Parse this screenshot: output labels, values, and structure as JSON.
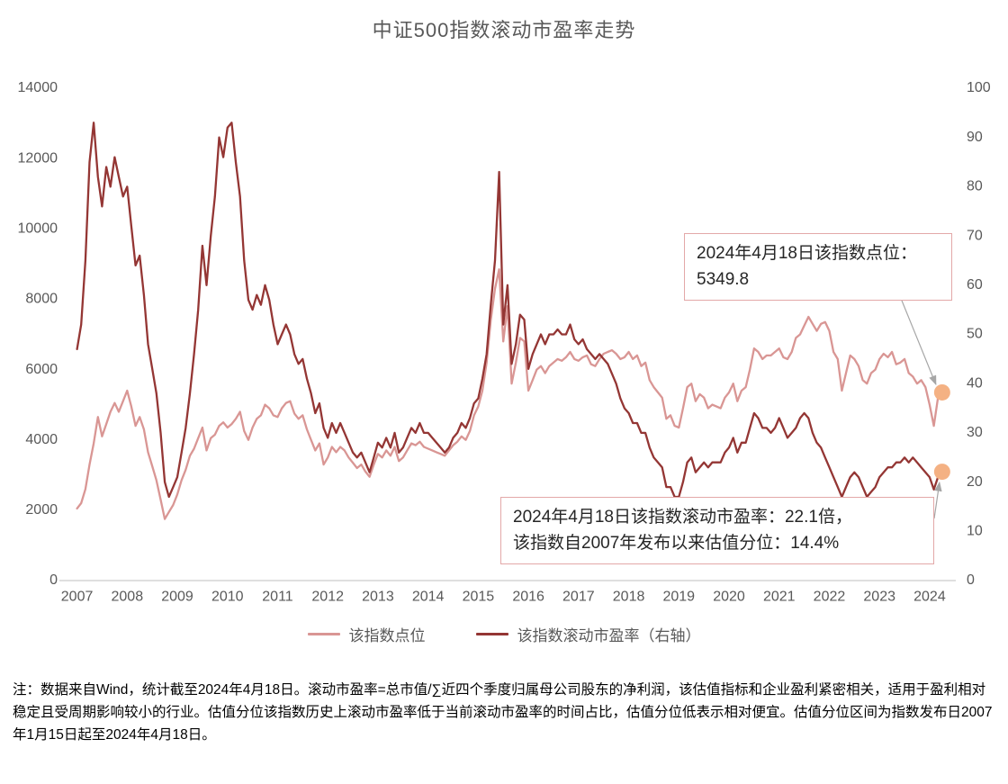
{
  "title": "中证500指数滚动市盈率走势",
  "legend": [
    {
      "label": "该指数点位"
    },
    {
      "label": "该指数滚动市盈率（右轴）"
    }
  ],
  "annotation_index": {
    "line1": "2024年4月18日该指数点位：",
    "line2": "5349.8"
  },
  "annotation_pe": {
    "line1": "2024年4月18日该指数滚动市盈率：22.1倍，",
    "line2": "该指数自2007年发布以来估值分位：14.4%"
  },
  "footnote": "注：数据来自Wind，统计截至2024年4月18日。滚动市盈率=总市值/∑近四个季度归属母公司股东的净利润，该估值指标和企业盈利紧密相关，适用于盈利相对稳定且受周期影响较小的行业。估值分位该指数历史上滚动市盈率低于当前滚动市盈率的时间占比，估值分位低表示相对便宜。估值分位区间为指数发布日2007年1月15日起至2024年4月18日。",
  "colors": {
    "index_line": "#D99694",
    "pe_line": "#943634",
    "marker": "#F4B183",
    "axis_text": "#595959",
    "axis_line": "#BFBFBF",
    "note_border": "#E3A8A8",
    "leader": "#A6A6A6"
  },
  "chart_data": {
    "type": "line",
    "title": "中证500指数滚动市盈率走势",
    "grid": false,
    "legend_position": "bottom",
    "x_label": "",
    "x_start": 2007.0,
    "x_step_years": 0.0833333,
    "x_ticks": [
      2007,
      2008,
      2009,
      2010,
      2011,
      2012,
      2013,
      2014,
      2015,
      2016,
      2017,
      2018,
      2019,
      2020,
      2021,
      2022,
      2023,
      2024
    ],
    "left_axis": {
      "label": "指数点位",
      "min": 0,
      "max": 14000,
      "tick_step": 2000
    },
    "right_axis": {
      "label": "滚动市盈率",
      "min": 0,
      "max": 100,
      "tick_step": 10
    },
    "series": [
      {
        "name": "该指数点位",
        "axis": "left",
        "color": "#D99694",
        "values": [
          2050,
          2200,
          2600,
          3300,
          3900,
          4650,
          4100,
          4450,
          4800,
          5050,
          4800,
          5100,
          5400,
          4950,
          4400,
          4650,
          4300,
          3650,
          3250,
          2850,
          2300,
          1750,
          1950,
          2150,
          2450,
          2850,
          3150,
          3550,
          3750,
          4050,
          4350,
          3700,
          4050,
          4150,
          4400,
          4500,
          4350,
          4450,
          4600,
          4800,
          4250,
          4000,
          4350,
          4600,
          4700,
          5000,
          4900,
          4700,
          4650,
          4900,
          5050,
          5100,
          4750,
          4600,
          4700,
          4300,
          4000,
          3700,
          3900,
          3300,
          3500,
          3800,
          3650,
          3800,
          3700,
          3500,
          3350,
          3200,
          3300,
          3100,
          2950,
          3300,
          3600,
          3500,
          3700,
          3550,
          3800,
          3400,
          3500,
          3700,
          3900,
          3850,
          3950,
          3800,
          3750,
          3700,
          3650,
          3600,
          3550,
          3700,
          3850,
          3950,
          4100,
          4000,
          4250,
          4700,
          4950,
          5400,
          6200,
          7400,
          8300,
          8850,
          6800,
          7800,
          5600,
          6200,
          6900,
          6800,
          5400,
          5700,
          6000,
          6100,
          5900,
          6100,
          6200,
          6300,
          6250,
          6350,
          6500,
          6300,
          6250,
          6350,
          6400,
          6150,
          6100,
          6300,
          6450,
          6500,
          6550,
          6450,
          6300,
          6350,
          6500,
          6300,
          6400,
          6100,
          6200,
          5700,
          5500,
          5350,
          5200,
          4600,
          4700,
          4400,
          4350,
          4900,
          5500,
          5600,
          5100,
          5300,
          5200,
          4900,
          5000,
          4950,
          4900,
          5200,
          5350,
          5600,
          5100,
          5400,
          5500,
          6000,
          6600,
          6500,
          6300,
          6400,
          6400,
          6500,
          6600,
          6350,
          6300,
          6500,
          6900,
          7000,
          7250,
          7500,
          7300,
          7100,
          7300,
          7350,
          7100,
          6500,
          6300,
          5400,
          5900,
          6400,
          6300,
          6100,
          5700,
          5600,
          5900,
          6000,
          6300,
          6450,
          6350,
          6500,
          6150,
          6200,
          6300,
          5900,
          5800,
          5600,
          5700,
          5500,
          5000,
          4400,
          5200,
          5349.8
        ]
      },
      {
        "name": "该指数滚动市盈率（右轴）",
        "axis": "right",
        "color": "#943634",
        "values": [
          47,
          52,
          65,
          85,
          93,
          82,
          76,
          84,
          80,
          86,
          82,
          78,
          80,
          72,
          64,
          66,
          58,
          48,
          43,
          38,
          30,
          20,
          17,
          19,
          21,
          26,
          31,
          38,
          46,
          55,
          68,
          60,
          70,
          78,
          90,
          86,
          92,
          93,
          85,
          78,
          65,
          57,
          55,
          58,
          56,
          60,
          57,
          52,
          48,
          50,
          52,
          50,
          46,
          44,
          45,
          41,
          38,
          34,
          36,
          31,
          29,
          32,
          30,
          32,
          30,
          28,
          26,
          25,
          26,
          24,
          22,
          25,
          28,
          27,
          29,
          27,
          30,
          26,
          27,
          29,
          31,
          30,
          32,
          30,
          30,
          29,
          28,
          27,
          26,
          27,
          29,
          30,
          32,
          31,
          33,
          36,
          37,
          41,
          46,
          56,
          65,
          83,
          52,
          60,
          44,
          48,
          54,
          53,
          43,
          46,
          48,
          50,
          48,
          50,
          50,
          51,
          50,
          50,
          52,
          49,
          48,
          49,
          47,
          46,
          45,
          46,
          45,
          44,
          42,
          40,
          37,
          35,
          34,
          32,
          32,
          30,
          30,
          27,
          25,
          24,
          23,
          19,
          19,
          17,
          17,
          20,
          24,
          25,
          22,
          23,
          24,
          23,
          24,
          24,
          24,
          26,
          27,
          29,
          26,
          28,
          28,
          31,
          34,
          33,
          31,
          31,
          30,
          31,
          33,
          31,
          29,
          30,
          31,
          33,
          34,
          33,
          30,
          28,
          27,
          25,
          23,
          21,
          19,
          17,
          19,
          21,
          22,
          21,
          19,
          17,
          18,
          19,
          21,
          22,
          23,
          23,
          24,
          24,
          25,
          24,
          25,
          24,
          23,
          22,
          21,
          18.5,
          21,
          22.1
        ]
      }
    ],
    "markers": [
      {
        "series_index": 0,
        "date_label": "2024年4月18日",
        "value": 5349.8
      },
      {
        "series_index": 1,
        "date_label": "2024年4月18日",
        "value": 22.1
      }
    ]
  }
}
